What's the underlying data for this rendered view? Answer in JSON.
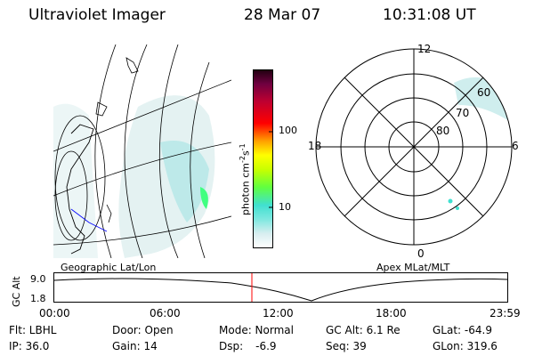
{
  "header": {
    "title": "Ultraviolet Imager",
    "date": "28 Mar 07",
    "time": "10:31:08 UT"
  },
  "colorbar": {
    "label": "photon cm",
    "label_exp1": "-2",
    "label_s": "s",
    "label_exp2": "-1",
    "ticks": [
      "100",
      "10"
    ]
  },
  "polar_plot": {
    "mlt_labels": [
      "12",
      "18",
      "6",
      "0"
    ],
    "lat_labels": [
      "60",
      "70",
      "80"
    ]
  },
  "labels": {
    "left_panel": "Geographic Lat/Lon",
    "right_panel": "Apex MLat/MLT"
  },
  "altitude_plot": {
    "ylabel": "GC Alt",
    "ytick_top": "9.0",
    "ytick_bottom": "1.8",
    "xticks": [
      "00:00",
      "06:00",
      "12:00",
      "18:00",
      "23:59"
    ]
  },
  "info": {
    "flt": "Flt: LBHL",
    "ip": "IP: 36.0",
    "door": "Door: Open",
    "gain": "Gain: 14",
    "mode": "Mode: Normal",
    "dsp_label": "Dsp:",
    "dsp_value": "-6.9",
    "gc_alt": "GC Alt: 6.1 Re",
    "seq": "Seq: 39",
    "glat": "GLat: -64.9",
    "glon": "GLon: 319.6"
  },
  "colors": {
    "colorbar_stops": [
      "#ffffff",
      "#d8eef0",
      "#7fe8e0",
      "#40e0d0",
      "#60ff40",
      "#c8ff00",
      "#ffff00",
      "#ffa000",
      "#ff0000",
      "#c00030",
      "#700040",
      "#200010"
    ],
    "aurora": "#b8e8e8",
    "aurora_bright": "#40ff80",
    "current_time_marker": "#ff0000",
    "track_line": "#0000ff"
  }
}
